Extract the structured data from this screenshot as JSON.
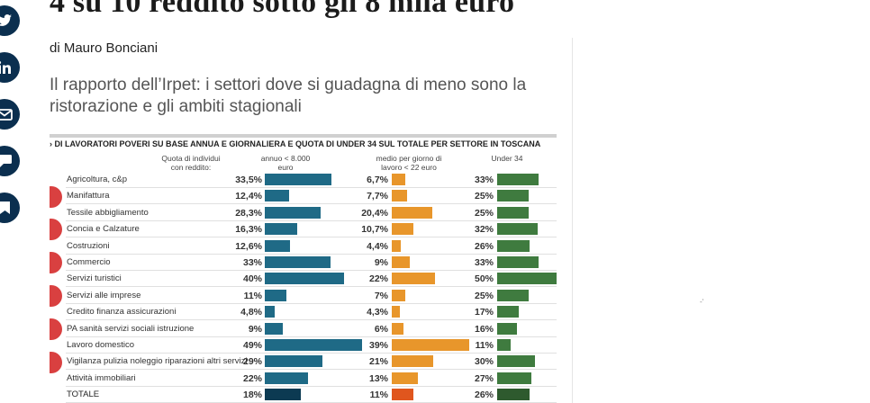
{
  "article": {
    "headline": "4 su 10 reddito sotto gli 8 mila euro",
    "author": "di Mauro Bonciani",
    "subtitle": "Il rapporto dell’Irpet: i settori dove si guadagna di meno sono la ristorazione e gli ambiti stagionali"
  },
  "share": {
    "items": [
      {
        "icon": "twitter-icon"
      },
      {
        "icon": "linkedin-icon"
      },
      {
        "icon": "email-icon"
      },
      {
        "icon": "comment-icon"
      },
      {
        "icon": "bookmark-icon"
      }
    ]
  },
  "colors": {
    "share_bg": "#0b2f4f",
    "bar_annual": "#1f6a86",
    "bar_daily": "#e8962b",
    "bar_under34": "#3f7b3f",
    "total_annual": "#0c3a52",
    "total_daily": "#e0561e",
    "total_under34": "#2e5a2e"
  },
  "misc": {
    "tiny_mark": "-‘"
  },
  "chart_data": {
    "type": "table",
    "title": "› DI LAVORATORI POVERI SU BASE ANNUA E GIORNALIERA E QUOTA DI UNDER 34 SUL TOTALE PER SETTORE IN TOSCANA",
    "header_quota": "Quota di individui con reddito:",
    "header_annual": "annuo < 8.000 euro",
    "header_daily": "medio per giorno di lavoro < 22 euro",
    "header_under34": "Under 34",
    "rows": [
      {
        "sector": "Agricoltura, c&p",
        "annual": "33,5%",
        "daily": "6,7%",
        "under34": "33%"
      },
      {
        "sector": "Manifattura",
        "annual": "12,4%",
        "daily": "7,7%",
        "under34": "25%"
      },
      {
        "sector": "Tessile abbigliamento",
        "annual": "28,3%",
        "daily": "20,4%",
        "under34": "25%"
      },
      {
        "sector": "Concia e Calzature",
        "annual": "16,3%",
        "daily": "10,7%",
        "under34": "32%"
      },
      {
        "sector": "Costruzioni",
        "annual": "12,6%",
        "daily": "4,4%",
        "under34": "26%"
      },
      {
        "sector": "Commercio",
        "annual": "33%",
        "daily": "9%",
        "under34": "33%"
      },
      {
        "sector": "Servizi turistici",
        "annual": "40%",
        "daily": "22%",
        "under34": "50%"
      },
      {
        "sector": "Servizi alle imprese",
        "annual": "11%",
        "daily": "7%",
        "under34": "25%"
      },
      {
        "sector": "Credito finanza assicurazioni",
        "annual": "4,8%",
        "daily": "4,3%",
        "under34": "17%"
      },
      {
        "sector": "PA sanità servizi sociali istruzione",
        "annual": "9%",
        "daily": "6%",
        "under34": "16%"
      },
      {
        "sector": "Lavoro domestico",
        "annual": "49%",
        "daily": "39%",
        "under34": "11%"
      },
      {
        "sector": "Vigilanza pulizia noleggio riparazioni altri servizi",
        "annual": "29%",
        "daily": "21%",
        "under34": "30%"
      },
      {
        "sector": "Attività immobiliari",
        "annual": "22%",
        "daily": "13%",
        "under34": "27%"
      },
      {
        "sector": "TOTALE",
        "annual": "18%",
        "daily": "11%",
        "under34": "26%"
      }
    ],
    "series": [
      {
        "values": [
          33.5,
          12.4,
          28.3,
          16.3,
          12.6,
          33,
          40,
          11,
          4.8,
          9,
          49,
          29,
          22,
          18
        ]
      },
      {
        "values": [
          6.7,
          7.7,
          20.4,
          10.7,
          4.4,
          9,
          22,
          7,
          4.3,
          6,
          39,
          21,
          13,
          11
        ]
      },
      {
        "values": [
          33,
          25,
          25,
          32,
          26,
          33,
          50,
          25,
          17,
          16,
          11,
          30,
          27,
          26
        ]
      }
    ]
  }
}
